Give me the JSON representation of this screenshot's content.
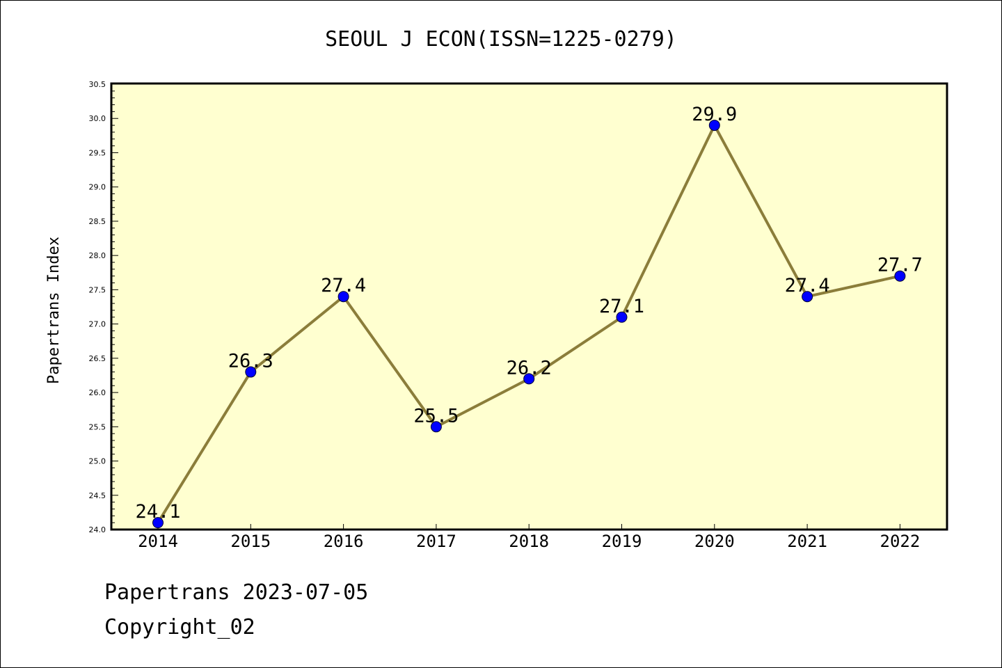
{
  "chart_data": {
    "type": "line",
    "title": "SEOUL J ECON(ISSN=1225-0279)",
    "xlabel": "",
    "ylabel": "Papertrans Index",
    "categories": [
      "2014",
      "2015",
      "2016",
      "2017",
      "2018",
      "2019",
      "2020",
      "2021",
      "2022"
    ],
    "series": [
      {
        "values": [
          24.1,
          26.3,
          27.4,
          25.5,
          26.2,
          27.1,
          29.9,
          27.4,
          27.7
        ],
        "data_labels": [
          "24.1",
          "26.3",
          "27.4",
          "25.5",
          "26.2",
          "27.1",
          "29.9",
          "27.4",
          "27.7"
        ]
      }
    ],
    "ylim": [
      24.0,
      30.5
    ],
    "yticks": [
      "24.0",
      "24.5",
      "25.0",
      "25.5",
      "26.0",
      "26.5",
      "27.0",
      "27.5",
      "28.0",
      "28.5",
      "29.0",
      "29.5",
      "30.0",
      "30.5"
    ],
    "grid": false,
    "legend": "none",
    "colors": {
      "plot_background": "#ffffd0",
      "line": "#8b7d3a",
      "marker": "#0000ff",
      "axis": "#000000"
    }
  },
  "footer": {
    "line1": "Papertrans 2023-07-05",
    "line2": "Copyright_02"
  }
}
